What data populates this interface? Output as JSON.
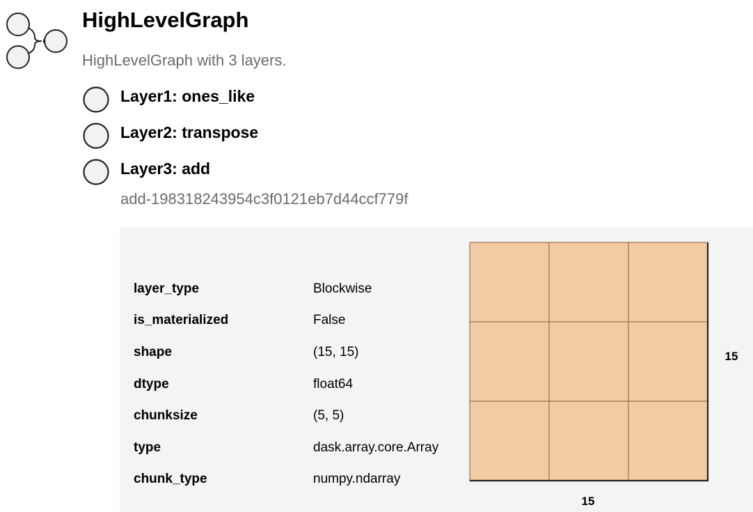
{
  "graph": {
    "title": "HighLevelGraph",
    "summary": "HighLevelGraph with 3 layers.",
    "logo_icon": "graph-nodes-icon"
  },
  "layers": [
    {
      "label": "Layer1: ones_like",
      "icon": "circle-icon"
    },
    {
      "label": "Layer2: transpose",
      "icon": "circle-icon"
    },
    {
      "label": "Layer3: add",
      "icon": "circle-icon"
    }
  ],
  "selected_layer": {
    "name": "add-198318243954c3f0121eb7d44ccf779f",
    "properties": [
      {
        "key": "layer_type",
        "value": "Blockwise"
      },
      {
        "key": "is_materialized",
        "value": "False"
      },
      {
        "key": "shape",
        "value": "(15, 15)"
      },
      {
        "key": "dtype",
        "value": "float64"
      },
      {
        "key": "chunksize",
        "value": "(5, 5)"
      },
      {
        "key": "type",
        "value": "dask.array.core.Array"
      },
      {
        "key": "chunk_type",
        "value": "numpy.ndarray"
      }
    ],
    "chunk_grid": {
      "rows": 3,
      "cols": 3,
      "width_label": "15",
      "height_label": "15",
      "fill_color": "#f2cba3",
      "line_color": "#9b7650"
    }
  }
}
